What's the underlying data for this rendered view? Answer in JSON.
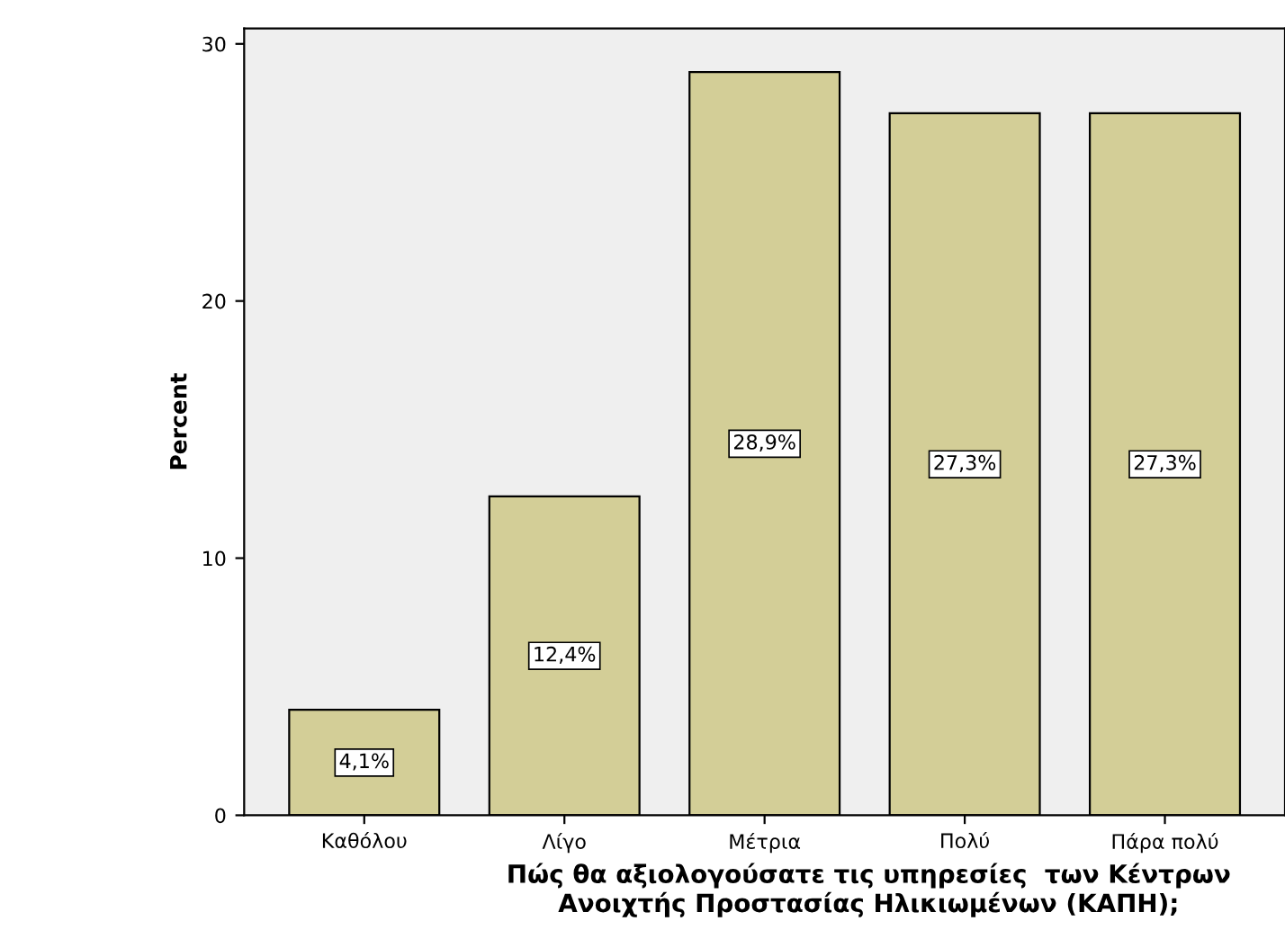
{
  "chart_data": {
    "type": "bar",
    "xlabel": "Πώς θα αξιολογούσατε τις υπηρεσίες  των Κέντρων Ανοιχτής Προστασίας Ηλικιωμένων (ΚΑΠΗ);",
    "ylabel": "Percent",
    "categories": [
      "Καθόλου",
      "Λίγο",
      "Μέτρια",
      "Πολύ",
      "Πάρα πολύ"
    ],
    "values": [
      4.1,
      12.4,
      28.9,
      27.3,
      27.3
    ],
    "value_labels": [
      "4,1%",
      "12,4%",
      "28,9%",
      "27,3%",
      "27,3%"
    ],
    "color": "#d3ce97",
    "ylim": [
      0,
      30.6
    ],
    "yticks": [
      0,
      10,
      20,
      30
    ],
    "grid": false,
    "legend": false
  }
}
